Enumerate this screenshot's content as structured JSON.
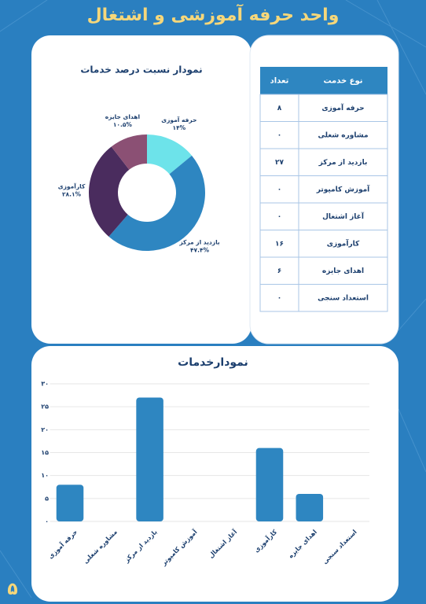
{
  "header": {
    "title": "واحد حرفه آموزشی و اشتغال"
  },
  "page_number": "۵",
  "table": {
    "columns": [
      "نوع خدمت",
      "تعداد"
    ],
    "rows": [
      [
        "حرفه آموزی",
        "۸"
      ],
      [
        "مشاوره شغلی",
        "۰"
      ],
      [
        "بازدید از مرکز",
        "۲۷"
      ],
      [
        "آموزش کامپوتر",
        "۰"
      ],
      [
        "آغاز اشتغال",
        "۰"
      ],
      [
        "کارآموزی",
        "۱۶"
      ],
      [
        "اهدای جایزه",
        "۶"
      ],
      [
        "استعداد سنجی",
        "۰"
      ]
    ]
  },
  "chart_data": [
    {
      "type": "donut",
      "title": "نمودار نسبت درصد خدمات",
      "categories": [
        "حرفه آموزی",
        "بازدید از مرکز",
        "کارآموزی",
        "اهدای جایزه"
      ],
      "values": [
        14,
        47.4,
        28.1,
        10.5
      ],
      "value_labels": [
        "۱۴%",
        "۴۷.۴%",
        "۲۸.۱%",
        "۱۰.۵%"
      ],
      "colors": [
        "#6de3ea",
        "#2e86c1",
        "#4a2c5e",
        "#8b5074"
      ]
    },
    {
      "type": "bar",
      "title": "نمودارخدمات",
      "categories": [
        "حرفه آموزی",
        "مشاوره شغلی",
        "بازدید از مرکز",
        "آموزش کامپوتر",
        "آغاز اشتغال",
        "کارآموزی",
        "اهدای جایزه",
        "استعداد سنجی"
      ],
      "values": [
        8,
        0,
        27,
        0,
        0,
        16,
        6,
        0
      ],
      "color": "#2e86c1",
      "ylim": [
        0,
        30
      ],
      "yticks": [
        {
          "value": 0,
          "label": "۰"
        },
        {
          "value": 5,
          "label": "۵"
        },
        {
          "value": 10,
          "label": "۱۰"
        },
        {
          "value": 15,
          "label": "۱۵"
        },
        {
          "value": 20,
          "label": "۲۰"
        },
        {
          "value": 25,
          "label": "۲۵"
        },
        {
          "value": 30,
          "label": "۳۰"
        }
      ],
      "grid": true
    }
  ]
}
